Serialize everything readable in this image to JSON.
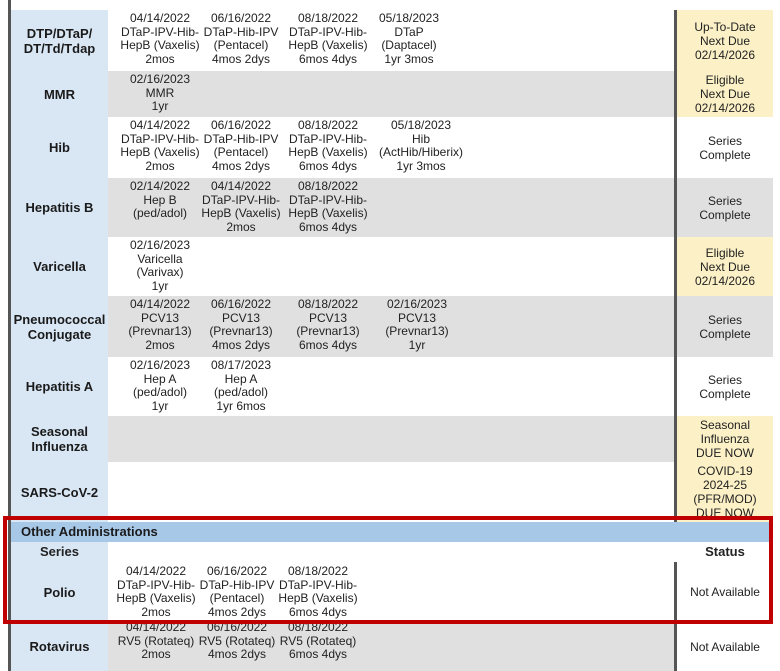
{
  "rows": [
    {
      "series": "DTP/DTaP/\nDT/Td/Tdap",
      "doses": [
        [
          "04/14/2022",
          "DTaP-IPV-Hib-",
          "HepB (Vaxelis)",
          "2mos"
        ],
        [
          "06/16/2022",
          "DTaP-Hib-IPV",
          "(Pentacel)",
          "4mos 2dys"
        ],
        [
          "08/18/2022",
          "DTaP-IPV-Hib-",
          "HepB (Vaxelis)",
          "6mos 4dys"
        ],
        [
          "05/18/2023",
          "DTaP",
          "(Daptacel)",
          "1yr 3mos"
        ]
      ],
      "status": "Up-To-Date\nNext Due\n02/14/2026"
    },
    {
      "series": "MMR",
      "doses": [
        [
          "02/16/2023",
          "MMR",
          "1yr"
        ]
      ],
      "status": "Eligible\nNext Due\n02/14/2026"
    },
    {
      "series": "Hib",
      "doses": [
        [
          "04/14/2022",
          "DTaP-IPV-Hib-",
          "HepB (Vaxelis)",
          "2mos"
        ],
        [
          "06/16/2022",
          "DTaP-Hib-IPV",
          "(Pentacel)",
          "4mos 2dys"
        ],
        [
          "08/18/2022",
          "DTaP-IPV-Hib-",
          "HepB (Vaxelis)",
          "6mos 4dys"
        ],
        [
          "05/18/2023",
          "Hib",
          "(ActHib/Hiberix)",
          "1yr 3mos"
        ]
      ],
      "status": "Series\nComplete"
    },
    {
      "series": "Hepatitis B",
      "doses": [
        [
          "02/14/2022",
          "Hep B",
          "(ped/adol)"
        ],
        [
          "04/14/2022",
          "DTaP-IPV-Hib-",
          "HepB (Vaxelis)",
          "2mos"
        ],
        [
          "08/18/2022",
          "DTaP-IPV-Hib-",
          "HepB (Vaxelis)",
          "6mos 4dys"
        ]
      ],
      "status": "Series\nComplete"
    },
    {
      "series": "Varicella",
      "doses": [
        [
          "02/16/2023",
          "Varicella",
          "(Varivax)",
          "1yr"
        ]
      ],
      "status": "Eligible\nNext Due\n02/14/2026"
    },
    {
      "series": "Pneumococcal\nConjugate",
      "doses": [
        [
          "04/14/2022",
          "PCV13",
          "(Prevnar13)",
          "2mos"
        ],
        [
          "06/16/2022",
          "PCV13",
          "(Prevnar13)",
          "4mos 2dys"
        ],
        [
          "08/18/2022",
          "PCV13",
          "(Prevnar13)",
          "6mos 4dys"
        ],
        [
          "02/16/2023",
          "PCV13",
          "(Prevnar13)",
          "1yr"
        ]
      ],
      "status": "Series\nComplete"
    },
    {
      "series": "Hepatitis A",
      "doses": [
        [
          "02/16/2023",
          "Hep A",
          "(ped/adol)",
          "1yr"
        ],
        [
          "08/17/2023",
          "Hep A",
          "(ped/adol)",
          "1yr 6mos"
        ]
      ],
      "status": "Series\nComplete"
    },
    {
      "series": "Seasonal\nInfluenza",
      "doses": [],
      "status": "Seasonal\nInfluenza\nDUE NOW"
    },
    {
      "series": "SARS-CoV-2",
      "doses": [],
      "status": "COVID-19\n2024-25\n(PFR/MOD)\nDUE NOW"
    }
  ],
  "other": {
    "section_title": "Other Administrations",
    "col_series": "Series",
    "col_status": "Status",
    "rows": [
      {
        "series": "Polio",
        "doses": [
          [
            "04/14/2022",
            "DTaP-IPV-Hib-",
            "HepB (Vaxelis)",
            "2mos"
          ],
          [
            "06/16/2022",
            "DTaP-Hib-IPV",
            "(Pentacel)",
            "4mos 2dys"
          ],
          [
            "08/18/2022",
            "DTaP-IPV-Hib-",
            "HepB (Vaxelis)",
            "6mos 4dys"
          ]
        ],
        "status": "Not Available"
      },
      {
        "series": "Rotavirus",
        "doses": [
          [
            "04/14/2022",
            "RV5 (Rotateq)",
            "2mos"
          ],
          [
            "06/16/2022",
            "RV5 (Rotateq)",
            "4mos 2dys"
          ],
          [
            "08/18/2022",
            "RV5 (Rotateq)",
            "6mos 4dys"
          ]
        ],
        "status": "Not Available"
      }
    ]
  },
  "colors": {
    "series_bg": "#d9e7f5",
    "row_gray": "#e0e0e0",
    "status_yellow": "#fbf0c6",
    "section_header": "#a8c8e8",
    "highlight": "#c00000"
  }
}
